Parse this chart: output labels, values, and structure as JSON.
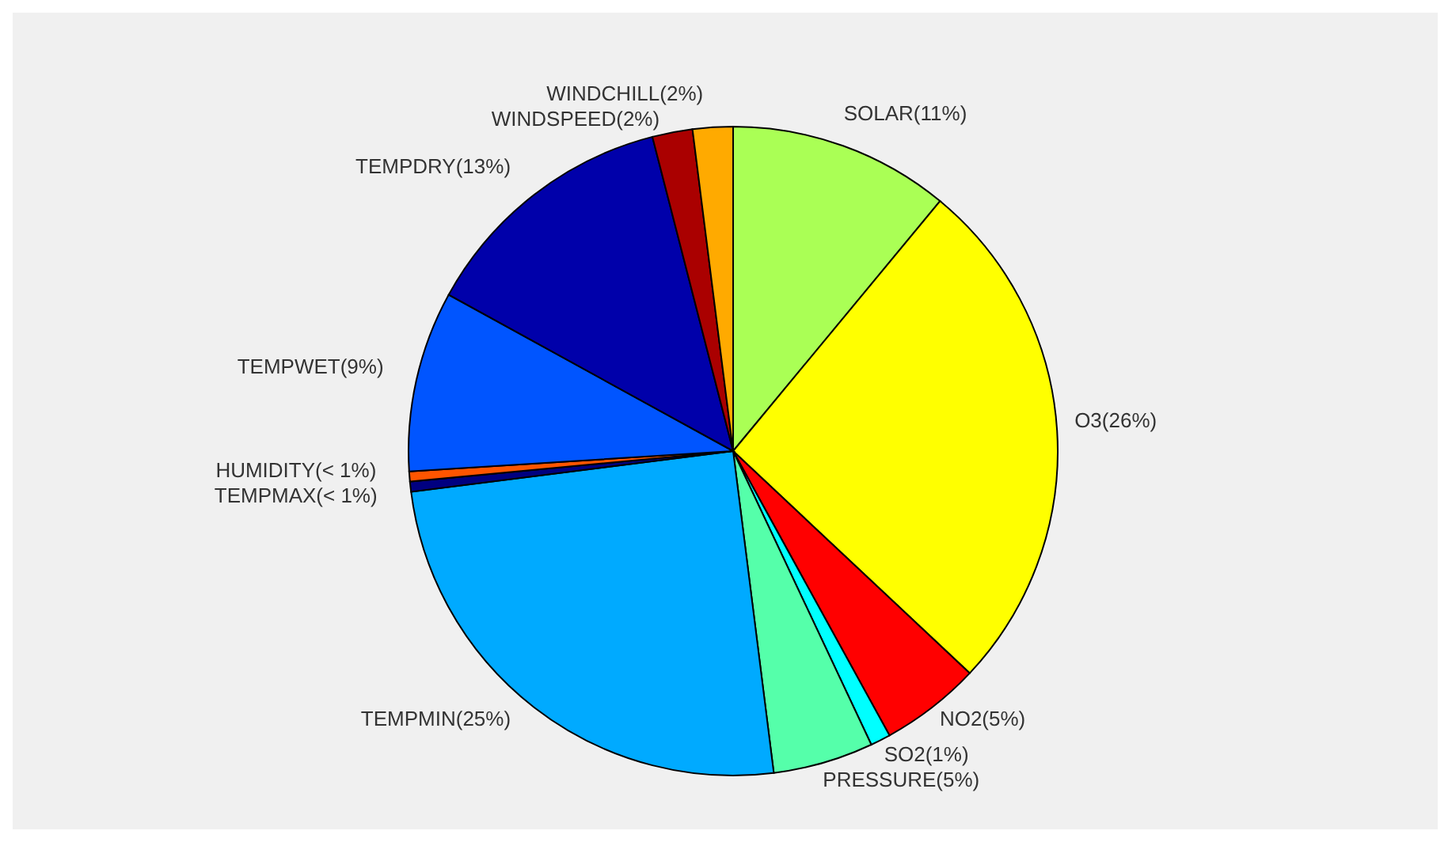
{
  "chart_data": {
    "type": "pie",
    "categories": [
      "SOLAR(11%)",
      "O3(26%)",
      "NO2(5%)",
      "SO2(1%)",
      "PRESSURE(5%)",
      "TEMPMIN(25%)",
      "TEMPMAX(< 1%)",
      "HUMIDITY(< 1%)",
      "TEMPWET(9%)",
      "TEMPDRY(13%)",
      "WINDSPEED(2%)",
      "WINDCHILL(2%)"
    ],
    "values": [
      11,
      26,
      5,
      1,
      5,
      25,
      0.5,
      0.5,
      9,
      13,
      2,
      2
    ],
    "colors": [
      "#aaff55",
      "#ffff00",
      "#ff0000",
      "#00ffff",
      "#55ffaa",
      "#00aaff",
      "#000080",
      "#ff5500",
      "#0055ff",
      "#0000aa",
      "#aa0000",
      "#ffaa00"
    ],
    "legend": false
  }
}
